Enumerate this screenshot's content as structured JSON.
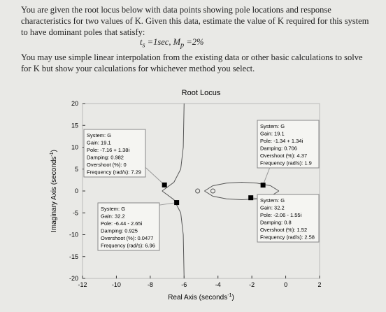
{
  "paragraphs": [
    "You are given the root locus below with data points showing pole locations and response characteristics for two values of K. Given this data, estimate the value of K required for this system to have dominant poles that satisfy:",
    "You may use simple linear interpolation from the existing data or other basic calculations to solve for K but show your calculations for whichever method you select."
  ],
  "spec": [
    {
      "symbol": "t",
      "sub": "s",
      "rest": "=1sec,"
    },
    {
      "symbol": "M",
      "sub": "p",
      "rest": "=2%"
    }
  ],
  "chart_data": {
    "type": "line",
    "title": "Root Locus",
    "xlabel": {
      "text": "Real Axis (seconds",
      "sup": "-1",
      "close": ")"
    },
    "ylabel": {
      "text": "Imaginary Axis (seconds",
      "sup": "-1",
      "close": ")"
    },
    "xlim": [
      -12,
      2
    ],
    "ylim": [
      -20,
      20
    ],
    "xticks": [
      -12,
      -10,
      -8,
      -6,
      -4,
      -2,
      0,
      2
    ],
    "yticks": [
      -20,
      -15,
      -10,
      -5,
      0,
      5,
      10,
      15,
      20
    ],
    "series": [
      {
        "x": [
          -7.3,
          -6.6,
          -6.2,
          -6.05,
          -6.0
        ],
        "values": [
          0,
          2,
          5,
          10,
          20
        ]
      },
      {
        "x": [
          -7.3,
          -6.6,
          -6.2,
          -6.05,
          -6.0
        ],
        "values": [
          0,
          -2,
          -5,
          -10,
          -20
        ]
      },
      {
        "x": [
          -4.8,
          -4.3,
          -3.5,
          -2.6,
          -1.7,
          -0.9,
          -0.4
        ],
        "values": [
          0,
          1.2,
          1.8,
          2.0,
          1.8,
          1.2,
          0
        ]
      },
      {
        "x": [
          -4.8,
          -4.3,
          -3.5,
          -2.6,
          -1.7,
          -0.9,
          -0.4
        ],
        "values": [
          0,
          -1.2,
          -1.8,
          -2.0,
          -1.8,
          -1.2,
          0
        ]
      }
    ],
    "zeros": {
      "x": [
        -5.2,
        -4.3
      ],
      "values": [
        0,
        0
      ]
    },
    "datatip_labels": [
      "System:",
      "Gain:",
      "Pole:",
      "Damping:",
      "Overshoot (%):",
      "Frequency (rad/s):"
    ],
    "datatips": [
      {
        "system": "G",
        "gain": 19.1,
        "pole": "-7.16 + 1.38i",
        "damping": 0.982,
        "overshoot": 0,
        "frequency": 7.29,
        "x": -7.16,
        "y": 1.38
      },
      {
        "system": "G",
        "gain": 19.1,
        "pole": "-1.34 + 1.34i",
        "damping": 0.706,
        "overshoot": 4.37,
        "frequency": 1.9,
        "x": -1.34,
        "y": 1.34
      },
      {
        "system": "G",
        "gain": 32.2,
        "pole": "-6.44 - 2.65i",
        "damping": 0.925,
        "overshoot": 0.0477,
        "frequency": 6.96,
        "x": -6.44,
        "y": -2.65
      },
      {
        "system": "G",
        "gain": 32.2,
        "pole": "-2.06 - 1.55i",
        "damping": 0.8,
        "overshoot": 1.52,
        "frequency": 2.58,
        "x": -2.06,
        "y": -1.55
      }
    ]
  }
}
